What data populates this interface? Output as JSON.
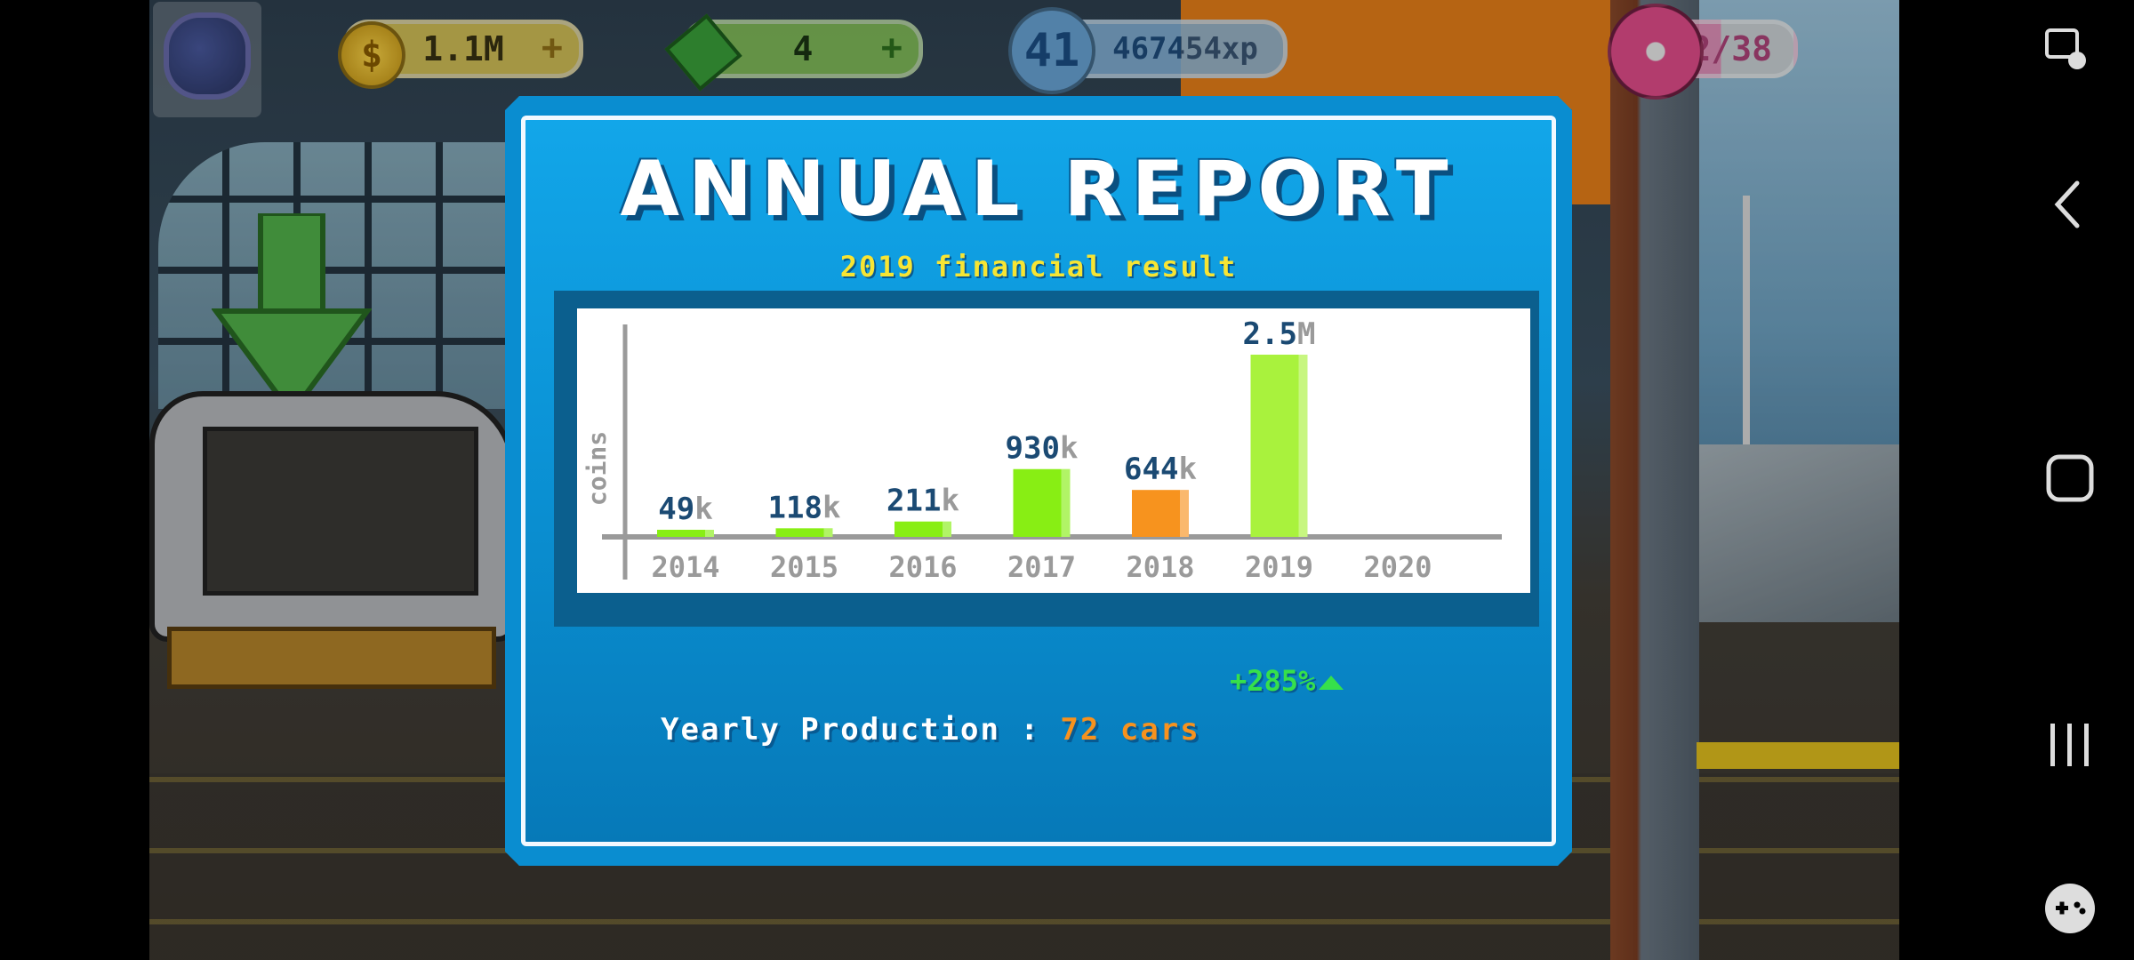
{
  "hud": {
    "coins": "1.1M",
    "cash": "4",
    "level": "41",
    "xp": "467454xp",
    "donuts": "22/38",
    "donut_fill": 0.58
  },
  "report": {
    "title": "ANNUAL REPORT",
    "subtitle": "2019 financial result",
    "growth": "+285%",
    "production_label": "Yearly Production :",
    "production_value": "72 cars"
  },
  "chart_data": {
    "type": "bar",
    "ylabel": "coins",
    "categories": [
      "2014",
      "2015",
      "2016",
      "2017",
      "2018",
      "2019",
      "2020"
    ],
    "values": [
      49000,
      118000,
      211000,
      930000,
      644000,
      2500000,
      null
    ],
    "value_labels": [
      {
        "num": "49",
        "unit": "k"
      },
      {
        "num": "118",
        "unit": "k"
      },
      {
        "num": "211",
        "unit": "k"
      },
      {
        "num": "930",
        "unit": "k"
      },
      {
        "num": "644",
        "unit": "k"
      },
      {
        "num": "2.5",
        "unit": "M"
      },
      null
    ],
    "bar_colors": [
      "#88ee14",
      "#88ee14",
      "#88ee14",
      "#88ee14",
      "#f7931e",
      "#a9f23d",
      null
    ],
    "ylim": [
      0,
      2500000
    ],
    "grid": false,
    "legend": "none"
  },
  "colors": {
    "panel_blue": "#0a8dd0",
    "title_white": "#ffffff",
    "subtitle_yellow": "#f7e533",
    "growth_green": "#36e04b",
    "accent_orange": "#f7921e"
  },
  "navbar": {
    "icons": [
      "screen-recorder-icon",
      "back-icon",
      "home-icon",
      "recent-apps-icon",
      "game-tools-icon"
    ]
  }
}
